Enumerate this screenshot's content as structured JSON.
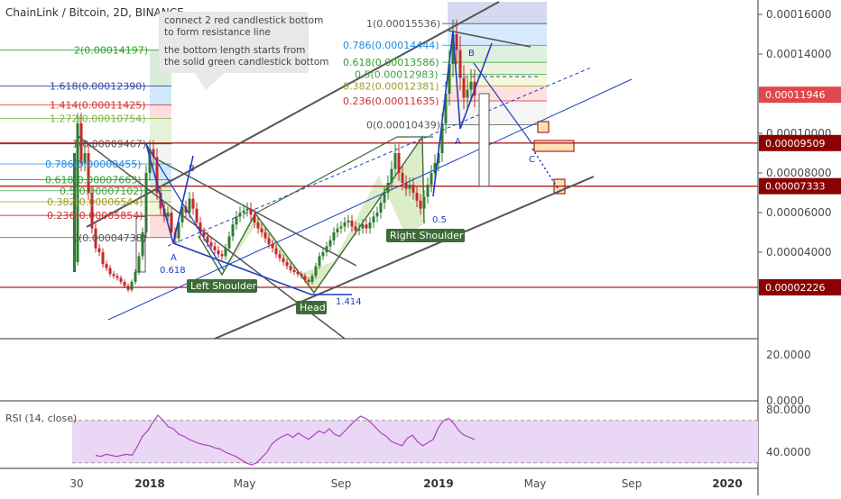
{
  "chart_data": {
    "type": "candlestick",
    "title": "ChainLink / Bitcoin, 2D, BINANCE",
    "price_axis": {
      "ticks": [
        "0.00016000",
        "0.00014000",
        "0.00012000",
        "0.00010000",
        "0.00008000",
        "0.00006000",
        "0.00004000",
        "0.00002000"
      ],
      "ticks_values": [
        0.00016,
        0.00014,
        0.00012,
        0.0001,
        8e-05,
        6e-05,
        4e-05,
        2e-05
      ],
      "range": [
        1.5e-05,
        0.000165
      ]
    },
    "price_tags": [
      {
        "label": "0.00011946",
        "value": 0.00011946,
        "color": "#e0484b"
      },
      {
        "label": "0.00009509",
        "value": 9.509e-05,
        "color": "#8b0000"
      },
      {
        "label": "0.00007333",
        "value": 7.333e-05,
        "color": "#8b0000"
      },
      {
        "label": "0.00002226",
        "value": 2.226e-05,
        "color": "#8b0000"
      }
    ],
    "volume_axis": {
      "ticks": [
        "20.0000",
        "0.0000"
      ]
    },
    "rsi": {
      "label": "RSI (14, close)",
      "ticks": [
        "80.0000",
        "40.0000"
      ],
      "range": [
        20,
        95
      ],
      "bands": [
        70,
        30
      ],
      "values": [
        37,
        36,
        38,
        37,
        36,
        37,
        38,
        37,
        45,
        55,
        60,
        68,
        75,
        70,
        64,
        62,
        57,
        55,
        52,
        50,
        48,
        47,
        46,
        44,
        43,
        40,
        38,
        36,
        33,
        30,
        28,
        30,
        35,
        40,
        48,
        52,
        55,
        57,
        54,
        58,
        55,
        52,
        56,
        60,
        58,
        62,
        57,
        55,
        60,
        65,
        70,
        74,
        72,
        68,
        63,
        58,
        55,
        50,
        48,
        46,
        53,
        56,
        50,
        46,
        49,
        52,
        63,
        70,
        72,
        67,
        60,
        56,
        54,
        52
      ]
    },
    "x_axis": {
      "ticks": [
        "30",
        "2018",
        "May",
        "Sep",
        "2019",
        "May",
        "Sep",
        "2020"
      ],
      "ticks_bold": [
        false,
        true,
        false,
        false,
        true,
        false,
        false,
        true
      ]
    },
    "fib_left": [
      {
        "label": "2(0.00014197)",
        "value": 0.00014197,
        "color": "#2ca02c"
      },
      {
        "label": "1.618(0.00012390)",
        "value": 0.0001239,
        "color": "#3949ab"
      },
      {
        "label": "1.414(0.00011425)",
        "value": 0.00011425,
        "color": "#d32f2f"
      },
      {
        "label": "1.272(0.00010754)",
        "value": 0.00010754,
        "color": "#7cb342"
      },
      {
        "label": "1(0.00009467)",
        "value": 9.467e-05,
        "color": "#555555"
      },
      {
        "label": "0.786(0.00008455)",
        "value": 8.455e-05,
        "color": "#1e88e5"
      },
      {
        "label": "0.618(0.00007663)",
        "value": 7.663e-05,
        "color": "#2ca02c"
      },
      {
        "label": "0.5(0.00007102)",
        "value": 7.102e-05,
        "color": "#43a047"
      },
      {
        "label": "0.382(0.00006544)",
        "value": 6.544e-05,
        "color": "#9e9d24"
      },
      {
        "label": "0.236(0.00005854)",
        "value": 5.854e-05,
        "color": "#d32f2f"
      },
      {
        "label": "0(0.00004738)",
        "value": 4.738e-05,
        "color": "#555555"
      }
    ],
    "fib_right": [
      {
        "label": "1(0.00015536)",
        "value": 0.00015536,
        "color": "#555555"
      },
      {
        "label": "0.786(0.00014444)",
        "value": 0.00014444,
        "color": "#1e88e5"
      },
      {
        "label": "0.618(0.00013586)",
        "value": 0.00013586,
        "color": "#2ca02c"
      },
      {
        "label": "0.5(0.00012983)",
        "value": 0.00012983,
        "color": "#43a047"
      },
      {
        "label": "0.382(0.00012381)",
        "value": 0.00012381,
        "color": "#9e9d24"
      },
      {
        "label": "0.236(0.00011635)",
        "value": 0.00011635,
        "color": "#d32f2f"
      },
      {
        "label": "0(0.00010439)",
        "value": 0.00010439,
        "color": "#555555"
      }
    ],
    "annotations": {
      "note_line1": "connect 2 red candlestick bottom",
      "note_line2": "to form resistance line",
      "note_line3": "the bottom length starts from",
      "note_line4": "the solid green candlestick bottom",
      "left_shoulder": "Left Shoulder",
      "head": "Head",
      "right_shoulder": "Right Shoulder",
      "wave_a1": "A",
      "wave_b1": "B",
      "wave_0618": "0.618",
      "wave_1414": "1.414",
      "wave_05": "0.5",
      "wave_a2": "A",
      "wave_b2": "B",
      "wave_c2": "C"
    },
    "colors": {
      "up": "#2e7d32",
      "down": "#c62828",
      "resistance": "#b71c1c",
      "channel": "#555555",
      "wave": "#1f3fbf",
      "pattern_fill": "#9ccc65",
      "rsi_line": "#b040c0",
      "rsi_band": "#ead7f5"
    }
  }
}
